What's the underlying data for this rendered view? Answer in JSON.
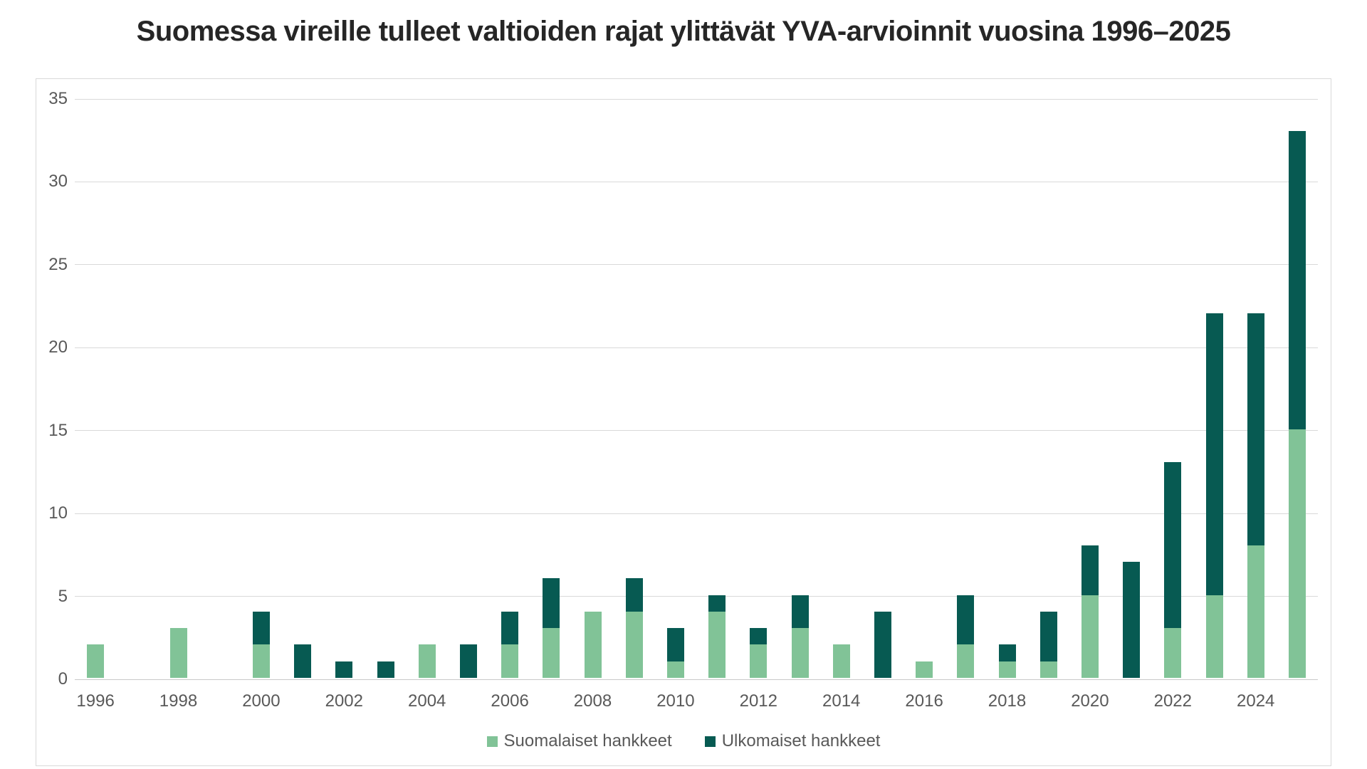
{
  "colors": {
    "background": "#ffffff",
    "title": "#262626",
    "label": "#595959",
    "grid": "#d9d9d9",
    "axis": "#c9c9c9",
    "frame_border": "#d9d9d9",
    "series_light": "#81c397",
    "series_dark": "#075a52"
  },
  "chart_data": {
    "type": "bar",
    "stacked": true,
    "title": "Suomessa vireille tulleet valtioiden rajat ylittävät YVA-arvioinnit vuosina 1996–2025",
    "categories": [
      1996,
      1997,
      1998,
      1999,
      2000,
      2001,
      2002,
      2003,
      2004,
      2005,
      2006,
      2007,
      2008,
      2009,
      2010,
      2011,
      2012,
      2013,
      2014,
      2015,
      2016,
      2017,
      2018,
      2019,
      2020,
      2021,
      2022,
      2023,
      2024,
      2025
    ],
    "series": [
      {
        "name": "Suomalaiset hankkeet",
        "color": "#81c397",
        "values": [
          2,
          0,
          3,
          0,
          2,
          0,
          0,
          0,
          2,
          0,
          2,
          3,
          4,
          4,
          1,
          4,
          2,
          3,
          2,
          0,
          1,
          2,
          1,
          1,
          5,
          0,
          3,
          5,
          8,
          15
        ]
      },
      {
        "name": "Ulkomaiset hankkeet",
        "color": "#075a52",
        "values": [
          0,
          0,
          0,
          0,
          2,
          2,
          1,
          1,
          0,
          2,
          2,
          3,
          0,
          2,
          2,
          1,
          1,
          2,
          0,
          4,
          0,
          3,
          1,
          3,
          3,
          7,
          10,
          17,
          14,
          18
        ]
      }
    ],
    "totals": [
      2,
      0,
      3,
      0,
      4,
      2,
      1,
      1,
      2,
      2,
      4,
      6,
      4,
      6,
      3,
      5,
      3,
      5,
      2,
      4,
      1,
      5,
      2,
      4,
      8,
      7,
      13,
      22,
      22,
      33
    ],
    "ylim": [
      0,
      35
    ],
    "yticks": [
      0,
      5,
      10,
      15,
      20,
      25,
      30,
      35
    ],
    "x_tick_labels": [
      "1996",
      "1998",
      "2000",
      "2002",
      "2004",
      "2006",
      "2008",
      "2010",
      "2012",
      "2014",
      "2016",
      "2018",
      "2020",
      "2022",
      "2024"
    ],
    "grid": "horizontal",
    "legend_position": "bottom-center"
  }
}
